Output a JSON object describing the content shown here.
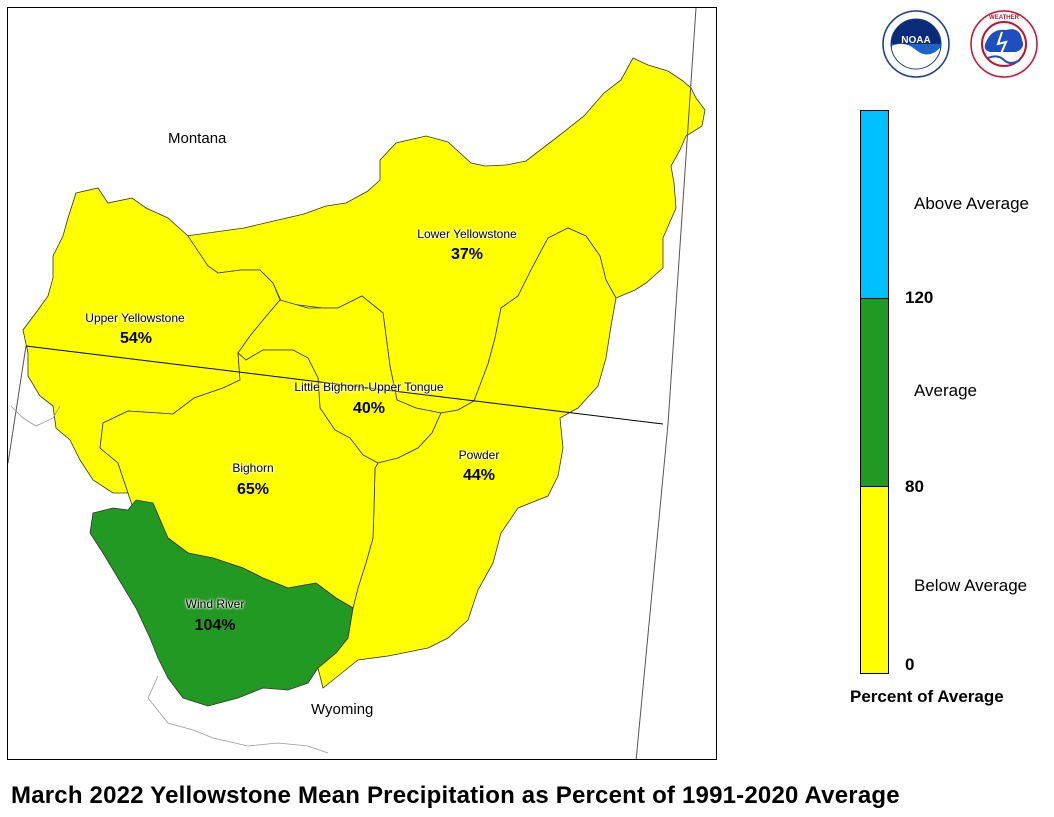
{
  "title": "March 2022 Yellowstone Mean Precipitation as Percent of 1991-2020 Average",
  "state_labels": {
    "montana": "Montana",
    "wyoming": "Wyoming"
  },
  "basins": [
    {
      "name": "Upper Yellowstone",
      "percent": "54%",
      "value": 54,
      "category": "Below Average"
    },
    {
      "name": "Lower Yellowstone",
      "percent": "37%",
      "value": 37,
      "category": "Below Average"
    },
    {
      "name": "Little Bighorn-Upper Tongue",
      "percent": "40%",
      "value": 40,
      "category": "Below Average"
    },
    {
      "name": "Bighorn",
      "percent": "65%",
      "value": 65,
      "category": "Below Average"
    },
    {
      "name": "Powder",
      "percent": "44%",
      "value": 44,
      "category": "Below Average"
    },
    {
      "name": "Wind River",
      "percent": "104%",
      "value": 104,
      "category": "Average"
    }
  ],
  "legend": {
    "caption": "Percent of Average",
    "categories": [
      {
        "label": "Above Average",
        "color": "#00BFFF"
      },
      {
        "label": "Average",
        "color": "#229922"
      },
      {
        "label": "Below Average",
        "color": "#FFFF00"
      }
    ],
    "ticks": [
      "120",
      "80",
      "0"
    ]
  },
  "logos": {
    "noaa": "NOAA",
    "nws": "NATIONAL WEATHER SERVICE"
  }
}
